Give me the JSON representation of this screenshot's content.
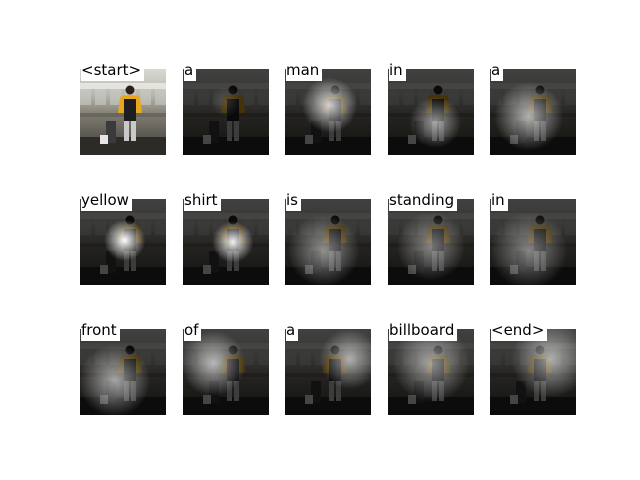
{
  "figure": {
    "tokens": [
      "<start>",
      "a",
      "man",
      "in",
      "a",
      "yellow",
      "shirt",
      "is",
      "standing",
      "in",
      "front",
      "of",
      "a",
      "billboard",
      "<end>"
    ],
    "columns": 5,
    "rows": 3
  },
  "attention": [
    null,
    {
      "hx": 0.5,
      "hy": 0.38,
      "r": 0.18,
      "s": 0.15
    },
    {
      "hx": 0.52,
      "hy": 0.42,
      "r": 0.32,
      "s": 0.8
    },
    {
      "hx": 0.55,
      "hy": 0.62,
      "r": 0.3,
      "s": 0.55
    },
    {
      "hx": 0.45,
      "hy": 0.55,
      "r": 0.4,
      "s": 0.65
    },
    {
      "hx": 0.52,
      "hy": 0.48,
      "r": 0.24,
      "s": 1.0
    },
    {
      "hx": 0.58,
      "hy": 0.5,
      "r": 0.24,
      "s": 0.95
    },
    {
      "hx": 0.45,
      "hy": 0.6,
      "r": 0.42,
      "s": 0.5
    },
    {
      "hx": 0.5,
      "hy": 0.55,
      "r": 0.4,
      "s": 0.45
    },
    {
      "hx": 0.45,
      "hy": 0.6,
      "r": 0.45,
      "s": 0.45
    },
    {
      "hx": 0.4,
      "hy": 0.6,
      "r": 0.42,
      "s": 0.6
    },
    {
      "hx": 0.35,
      "hy": 0.4,
      "r": 0.38,
      "s": 0.65
    },
    {
      "hx": 0.75,
      "hy": 0.35,
      "r": 0.35,
      "s": 0.6
    },
    {
      "hx": 0.5,
      "hy": 0.4,
      "r": 0.45,
      "s": 0.55
    },
    {
      "hx": 0.7,
      "hy": 0.35,
      "r": 0.45,
      "s": 0.6
    }
  ]
}
